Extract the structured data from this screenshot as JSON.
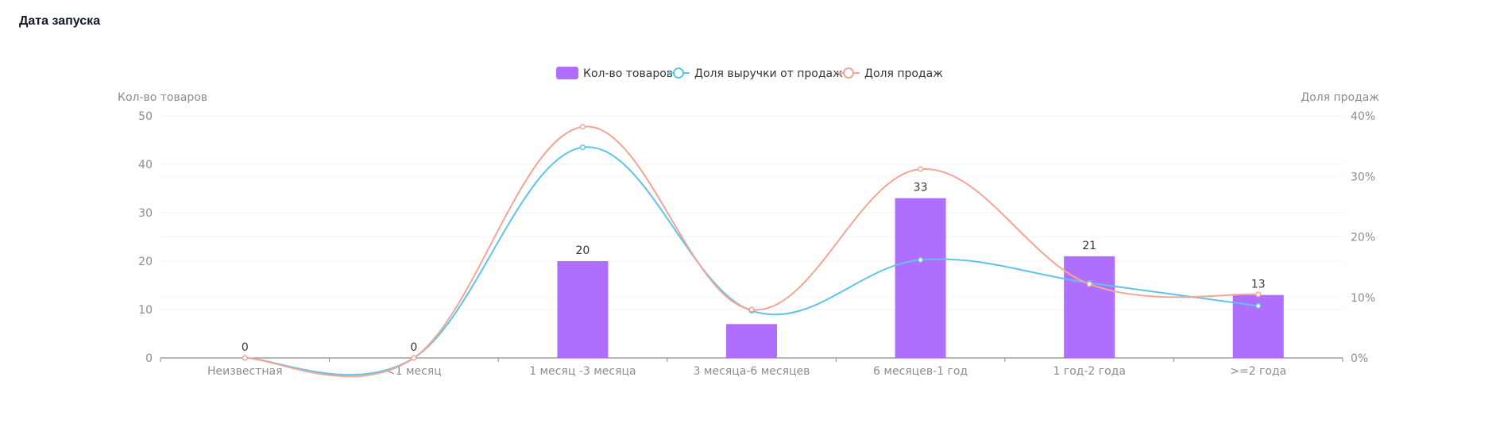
{
  "section": {
    "title": "Дата запуска"
  },
  "colors": {
    "bar": "#B06EFF",
    "revenue": "#5BC5EA",
    "sales": "#F4A595",
    "axis": "#8c8c8c",
    "grid": "#f0f0f0",
    "text": "#8c8c8c"
  },
  "chart_data": {
    "type": "bar",
    "categories": [
      "Неизвестная",
      "<1 месяц",
      "1 месяц -3 месяца",
      "3 месяца-6 месяцев",
      "6 месяцев-1 год",
      "1 год-2 года",
      ">=2 года"
    ],
    "series": [
      {
        "name": "Кол-во товаров",
        "type": "bar",
        "axis": "left",
        "values": [
          0,
          0,
          20,
          7,
          33,
          21,
          13
        ],
        "labels": [
          "0",
          "0",
          "20",
          "",
          "33",
          "21",
          "13"
        ]
      },
      {
        "name": "Доля выручки от продаж",
        "type": "line",
        "axis": "right",
        "values": [
          0,
          0,
          34.8,
          7.8,
          16.2,
          12.4,
          8.6
        ]
      },
      {
        "name": "Доля продаж",
        "type": "line",
        "axis": "right",
        "values": [
          0,
          0,
          38.2,
          8.0,
          31.2,
          12.2,
          10.5
        ]
      }
    ],
    "ylabel_left": "Кол-во товаров",
    "ylabel_right": "Доля продаж",
    "ylim_left": [
      0,
      50
    ],
    "yticks_left": [
      "0",
      "10",
      "20",
      "30",
      "40",
      "50"
    ],
    "ylim_right": [
      0,
      40
    ],
    "yticks_right": [
      "0%",
      "10%",
      "20%",
      "30%",
      "40%"
    ],
    "legend": "top-center",
    "grid": true
  }
}
